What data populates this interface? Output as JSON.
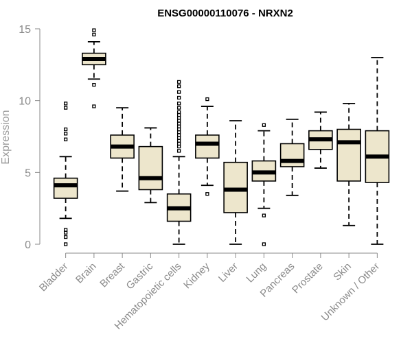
{
  "chart_data": {
    "type": "boxplot",
    "title": "ENSG00000110076 - NRXN2",
    "xlabel": "",
    "ylabel": "Expression",
    "ylim": [
      0,
      15
    ],
    "yticks": [
      0,
      5,
      10,
      15
    ],
    "box_fill": "#ede6cc",
    "categories": [
      "Bladder",
      "Brain",
      "Breast",
      "Gastric",
      "Hematopoietic cells",
      "Kidney",
      "Liver",
      "Lung",
      "Pancreas",
      "Prostate",
      "Skin",
      "Unknown / Other"
    ],
    "boxes": [
      {
        "name": "Bladder",
        "whisker_low": 1.8,
        "q1": 3.2,
        "median": 4.1,
        "q3": 4.6,
        "whisker_high": 6.1,
        "outliers": [
          0.0,
          0.5,
          0.8,
          1.0,
          7.3,
          7.7,
          8.0,
          9.5,
          9.8
        ]
      },
      {
        "name": "Brain",
        "whisker_low": 11.5,
        "q1": 12.5,
        "median": 12.9,
        "q3": 13.3,
        "whisker_high": 14.1,
        "outliers": [
          9.6,
          11.1,
          14.6,
          14.9
        ]
      },
      {
        "name": "Breast",
        "whisker_low": 3.7,
        "q1": 6.0,
        "median": 6.8,
        "q3": 7.6,
        "whisker_high": 9.5,
        "outliers": []
      },
      {
        "name": "Gastric",
        "whisker_low": 2.9,
        "q1": 3.8,
        "median": 4.6,
        "q3": 6.8,
        "whisker_high": 8.1,
        "outliers": []
      },
      {
        "name": "Hematopoietic cells",
        "whisker_low": 0.0,
        "q1": 1.6,
        "median": 2.5,
        "q3": 3.5,
        "whisker_high": 6.1,
        "outliers": [
          6.5,
          6.8,
          7.0,
          7.2,
          7.4,
          7.6,
          7.8,
          8.0,
          8.2,
          8.4,
          8.6,
          8.8,
          9.0,
          9.2,
          9.5,
          9.8,
          10.2,
          10.6,
          11.0,
          11.3
        ]
      },
      {
        "name": "Kidney",
        "whisker_low": 4.1,
        "q1": 6.0,
        "median": 7.0,
        "q3": 7.6,
        "whisker_high": 9.6,
        "outliers": [
          3.5,
          10.1
        ]
      },
      {
        "name": "Liver",
        "whisker_low": 0.0,
        "q1": 2.2,
        "median": 3.8,
        "q3": 5.7,
        "whisker_high": 8.6,
        "outliers": []
      },
      {
        "name": "Lung",
        "whisker_low": 2.5,
        "q1": 4.4,
        "median": 5.0,
        "q3": 5.8,
        "whisker_high": 7.9,
        "outliers": [
          0.0,
          2.0,
          8.3
        ]
      },
      {
        "name": "Pancreas",
        "whisker_low": 3.4,
        "q1": 5.4,
        "median": 5.8,
        "q3": 7.0,
        "whisker_high": 8.7,
        "outliers": []
      },
      {
        "name": "Prostate",
        "whisker_low": 5.3,
        "q1": 6.6,
        "median": 7.3,
        "q3": 7.9,
        "whisker_high": 9.2,
        "outliers": []
      },
      {
        "name": "Skin",
        "whisker_low": 1.3,
        "q1": 4.4,
        "median": 7.1,
        "q3": 8.0,
        "whisker_high": 9.8,
        "outliers": []
      },
      {
        "name": "Unknown / Other",
        "whisker_low": 0.0,
        "q1": 4.3,
        "median": 6.1,
        "q3": 7.9,
        "whisker_high": 13.0,
        "outliers": []
      }
    ]
  }
}
